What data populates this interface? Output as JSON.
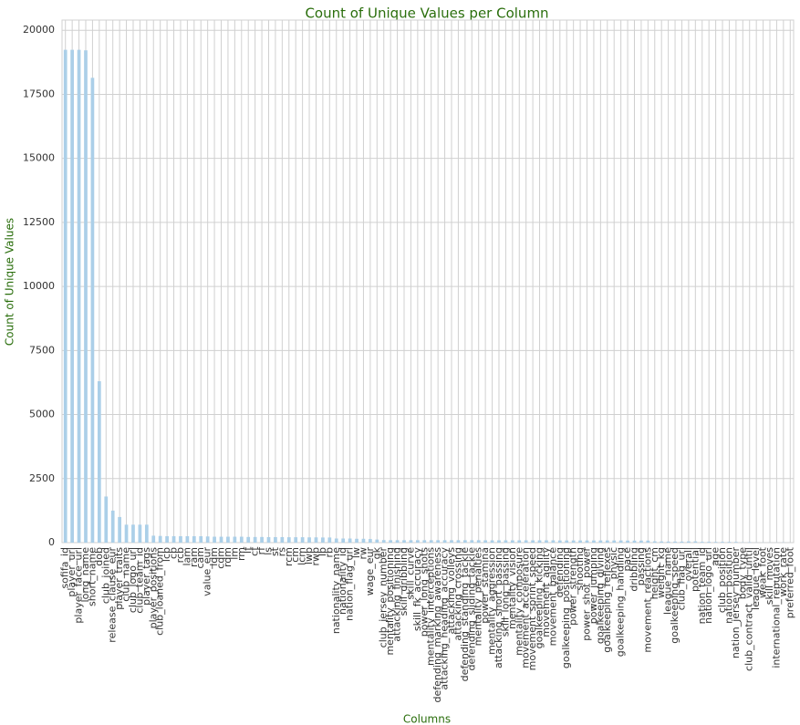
{
  "chart_data": {
    "type": "bar",
    "title": "Count of Unique Values per Column",
    "xlabel": "Columns",
    "ylabel": "Count of Unique Values",
    "categories": [
      "sofifa_id",
      "player_url",
      "player_face_url",
      "long_name",
      "short_name",
      "dob",
      "club_joined",
      "release_clause_eur",
      "player_traits",
      "club_name",
      "club_logo_url",
      "club_team_id",
      "player_tags",
      "player_positions",
      "club_loaned_from",
      "lcb",
      "cb",
      "rcb",
      "lam",
      "ram",
      "cam",
      "value_eur",
      "ldm",
      "cdm",
      "rdm",
      "lm",
      "rm",
      "lf",
      "cf",
      "rf",
      "ls",
      "st",
      "rs",
      "rcm",
      "cm",
      "lcm",
      "lwb",
      "rwb",
      "lb",
      "rb",
      "nationality_name",
      "nationality_id",
      "nation_flag_url",
      "lw",
      "rw",
      "wage_eur",
      "gk",
      "club_jersey_number",
      "mentality_positioning",
      "attacking_finishing",
      "skill_dribbling",
      "skill_curve",
      "skill_fk_accuracy",
      "power_long_shots",
      "mentality_interceptions",
      "defending_marking_awareness",
      "attacking_heading_accuracy",
      "attacking_volleys",
      "attacking_crossing",
      "defending_standing_tackle",
      "defending_sliding_tackle",
      "mentality_penalties",
      "power_stamina",
      "mentality_aggression",
      "attacking_short_passing",
      "skill_long_passing",
      "mentality_vision",
      "mentality_composure",
      "movement_acceleration",
      "movement_sprint_speed",
      "goalkeeping_kicking",
      "movement_agility",
      "movement_balance",
      "defending",
      "goalkeeping_positioning",
      "power_strength",
      "shooting",
      "power_shot_power",
      "power_jumping",
      "goalkeeping_diving",
      "goalkeeping_reflexes",
      "physic",
      "goalkeeping_handling",
      "pace",
      "dribbling",
      "passing",
      "movement_reactions",
      "height_cm",
      "weight_kg",
      "league_name",
      "goalkeeping_speed",
      "club_flag_url",
      "overall",
      "potential",
      "nation_team_id",
      "nation_logo_url",
      "age",
      "club_position",
      "nation_position",
      "nation_jersey_number",
      "body_type",
      "club_contract_valid_until",
      "league_level",
      "weak_foot",
      "skill_moves",
      "international_reputation",
      "work_rate",
      "preferred_foot"
    ],
    "values": [
      19239,
      19239,
      19239,
      19218,
      18145,
      6300,
      1800,
      1250,
      1000,
      700,
      700,
      700,
      700,
      270,
      260,
      250,
      250,
      250,
      250,
      250,
      250,
      240,
      230,
      230,
      230,
      230,
      230,
      220,
      220,
      220,
      215,
      215,
      215,
      210,
      210,
      210,
      205,
      205,
      200,
      200,
      160,
      160,
      160,
      150,
      150,
      140,
      120,
      100,
      95,
      95,
      95,
      95,
      95,
      95,
      95,
      95,
      95,
      95,
      95,
      95,
      95,
      95,
      90,
      90,
      90,
      90,
      90,
      90,
      90,
      90,
      90,
      90,
      90,
      85,
      85,
      85,
      85,
      85,
      85,
      85,
      85,
      85,
      85,
      80,
      80,
      80,
      80,
      50,
      45,
      40,
      40,
      40,
      47,
      49,
      30,
      30,
      27,
      29,
      27,
      27,
      10,
      16,
      5,
      5,
      5,
      5,
      9,
      2
    ],
    "color": "#abcfe8",
    "ylim": [
      0,
      20400
    ],
    "yticks": [
      0,
      2500,
      5000,
      7500,
      10000,
      12500,
      15000,
      17500,
      20000
    ],
    "grid": true
  }
}
